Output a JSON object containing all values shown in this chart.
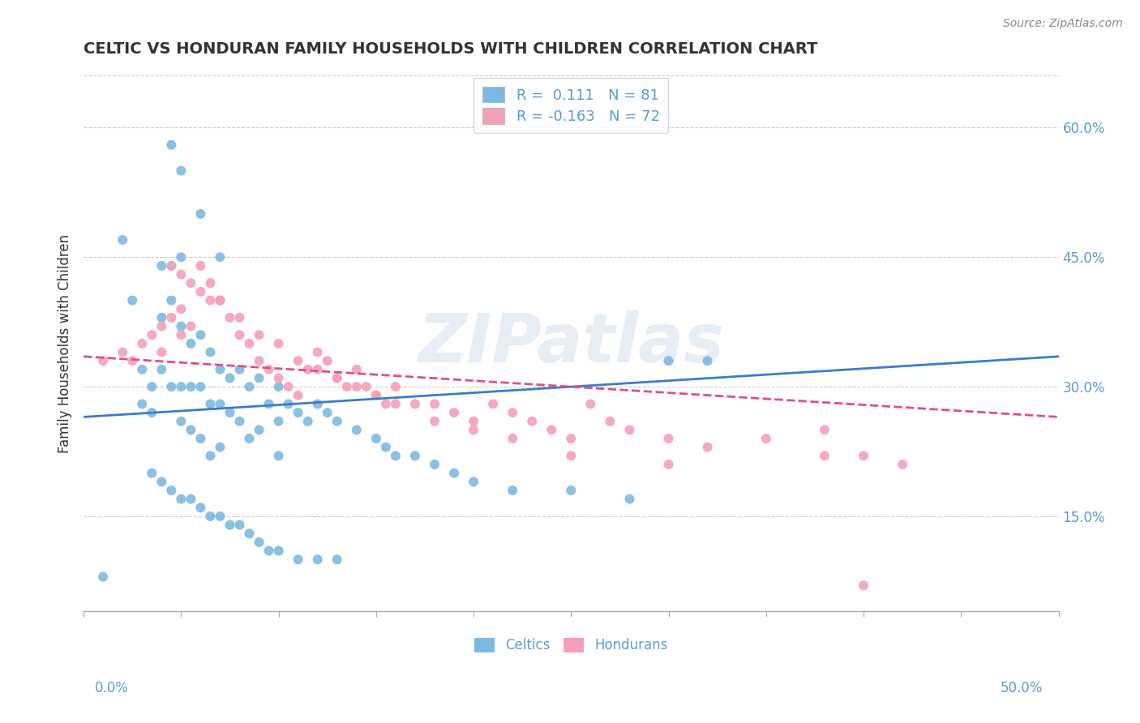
{
  "title": "CELTIC VS HONDURAN FAMILY HOUSEHOLDS WITH CHILDREN CORRELATION CHART",
  "source_text": "Source: ZipAtlas.com",
  "ylabel": "Family Households with Children",
  "watermark_text": "ZIPatlas",
  "xlim": [
    0.0,
    0.5
  ],
  "ylim": [
    0.04,
    0.66
  ],
  "y_ticks": [
    0.15,
    0.3,
    0.45,
    0.6
  ],
  "y_tick_labels": [
    "15.0%",
    "30.0%",
    "45.0%",
    "60.0%"
  ],
  "x_ticks": [
    0.0,
    0.05,
    0.1,
    0.15,
    0.2,
    0.25,
    0.3,
    0.35,
    0.4,
    0.45,
    0.5
  ],
  "color_celtic": "#7cb9e0",
  "color_honduran": "#f4a0b8",
  "color_trend_celtic": "#3a7dc9",
  "color_trend_honduran": "#e05080",
  "legend_R1": "R =  0.111   N = 81",
  "legend_R2": "R = -0.163   N = 72",
  "celtic_trend": [
    0.0,
    0.265,
    0.5,
    0.335
  ],
  "honduran_trend": [
    0.0,
    0.335,
    0.5,
    0.265
  ],
  "celtics_x": [
    0.01,
    0.02,
    0.025,
    0.03,
    0.03,
    0.035,
    0.035,
    0.04,
    0.04,
    0.04,
    0.045,
    0.045,
    0.045,
    0.05,
    0.05,
    0.05,
    0.05,
    0.055,
    0.055,
    0.055,
    0.06,
    0.06,
    0.06,
    0.065,
    0.065,
    0.065,
    0.07,
    0.07,
    0.07,
    0.075,
    0.075,
    0.08,
    0.08,
    0.085,
    0.085,
    0.09,
    0.09,
    0.095,
    0.1,
    0.1,
    0.1,
    0.105,
    0.11,
    0.115,
    0.12,
    0.125,
    0.13,
    0.14,
    0.15,
    0.155,
    0.16,
    0.17,
    0.18,
    0.19,
    0.2,
    0.22,
    0.25,
    0.28,
    0.3,
    0.32,
    0.035,
    0.04,
    0.045,
    0.05,
    0.055,
    0.06,
    0.065,
    0.07,
    0.075,
    0.08,
    0.085,
    0.09,
    0.095,
    0.1,
    0.11,
    0.12,
    0.13,
    0.045,
    0.05,
    0.06,
    0.07
  ],
  "celtics_y": [
    0.08,
    0.47,
    0.4,
    0.28,
    0.32,
    0.3,
    0.27,
    0.44,
    0.38,
    0.32,
    0.44,
    0.4,
    0.3,
    0.45,
    0.37,
    0.3,
    0.26,
    0.35,
    0.3,
    0.25,
    0.36,
    0.3,
    0.24,
    0.34,
    0.28,
    0.22,
    0.32,
    0.28,
    0.23,
    0.31,
    0.27,
    0.32,
    0.26,
    0.3,
    0.24,
    0.31,
    0.25,
    0.28,
    0.3,
    0.26,
    0.22,
    0.28,
    0.27,
    0.26,
    0.28,
    0.27,
    0.26,
    0.25,
    0.24,
    0.23,
    0.22,
    0.22,
    0.21,
    0.2,
    0.19,
    0.18,
    0.18,
    0.17,
    0.33,
    0.33,
    0.2,
    0.19,
    0.18,
    0.17,
    0.17,
    0.16,
    0.15,
    0.15,
    0.14,
    0.14,
    0.13,
    0.12,
    0.11,
    0.11,
    0.1,
    0.1,
    0.1,
    0.58,
    0.55,
    0.5,
    0.45
  ],
  "hondurans_x": [
    0.01,
    0.02,
    0.025,
    0.03,
    0.035,
    0.04,
    0.04,
    0.045,
    0.05,
    0.05,
    0.055,
    0.06,
    0.065,
    0.07,
    0.075,
    0.08,
    0.085,
    0.09,
    0.095,
    0.1,
    0.105,
    0.11,
    0.115,
    0.12,
    0.125,
    0.13,
    0.135,
    0.14,
    0.145,
    0.15,
    0.155,
    0.16,
    0.17,
    0.18,
    0.19,
    0.2,
    0.21,
    0.22,
    0.23,
    0.24,
    0.25,
    0.26,
    0.27,
    0.28,
    0.3,
    0.32,
    0.35,
    0.38,
    0.4,
    0.42,
    0.045,
    0.05,
    0.055,
    0.06,
    0.065,
    0.07,
    0.08,
    0.09,
    0.1,
    0.11,
    0.12,
    0.13,
    0.14,
    0.15,
    0.16,
    0.18,
    0.2,
    0.22,
    0.25,
    0.3,
    0.38,
    0.4
  ],
  "hondurans_y": [
    0.33,
    0.34,
    0.33,
    0.35,
    0.36,
    0.37,
    0.34,
    0.38,
    0.39,
    0.36,
    0.37,
    0.44,
    0.42,
    0.4,
    0.38,
    0.36,
    0.35,
    0.33,
    0.32,
    0.31,
    0.3,
    0.29,
    0.32,
    0.34,
    0.33,
    0.31,
    0.3,
    0.32,
    0.3,
    0.29,
    0.28,
    0.3,
    0.28,
    0.28,
    0.27,
    0.26,
    0.28,
    0.27,
    0.26,
    0.25,
    0.24,
    0.28,
    0.26,
    0.25,
    0.24,
    0.23,
    0.24,
    0.22,
    0.22,
    0.21,
    0.44,
    0.43,
    0.42,
    0.41,
    0.4,
    0.4,
    0.38,
    0.36,
    0.35,
    0.33,
    0.32,
    0.31,
    0.3,
    0.29,
    0.28,
    0.26,
    0.25,
    0.24,
    0.22,
    0.21,
    0.25,
    0.07
  ]
}
